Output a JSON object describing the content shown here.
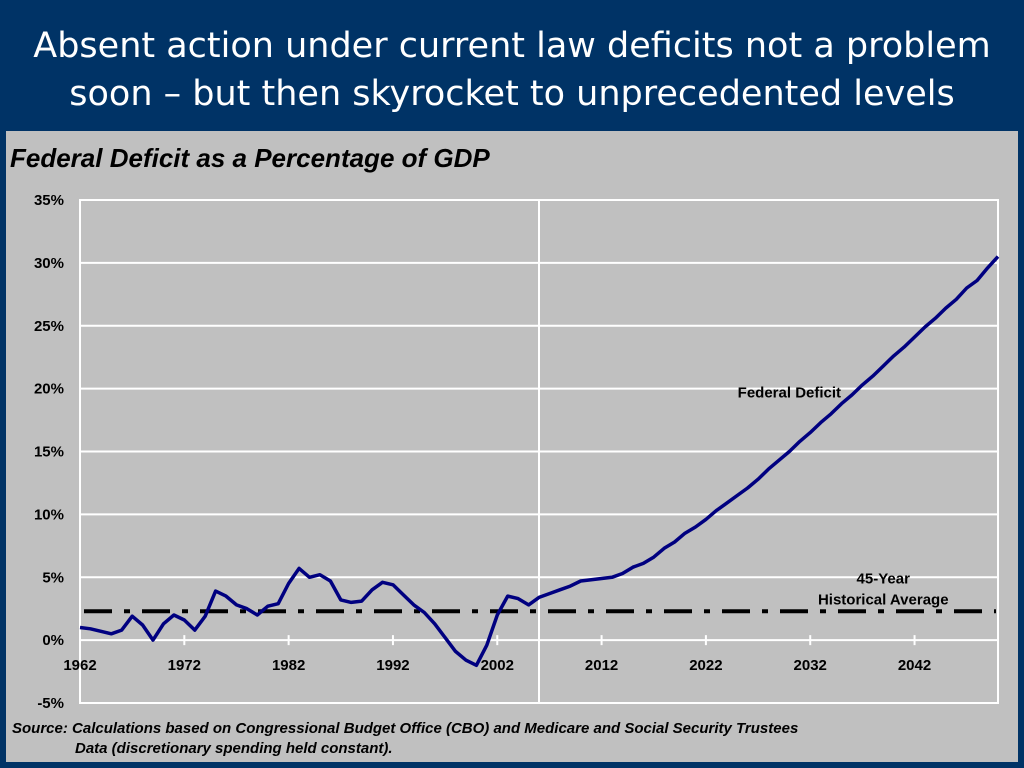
{
  "slide": {
    "title_line1": "Absent action under current law deficits not a problem",
    "title_line2": "soon – but then skyrocket to unprecedented levels",
    "background_color": "#003366",
    "source_line1": "Source: Calculations based on Congressional Budget Office (CBO) and Medicare and Social Security Trustees",
    "source_line2": "Data (discretionary spending held constant)."
  },
  "chart_data": {
    "type": "line",
    "title": "Federal Deficit as a Percentage of GDP",
    "ylim": [
      -5,
      35
    ],
    "xlim": [
      1962,
      2050
    ],
    "y_ticks": [
      35,
      30,
      25,
      20,
      15,
      10,
      5,
      0,
      -5
    ],
    "y_tick_labels": [
      "35%",
      "30%",
      "25%",
      "20%",
      "15%",
      "10%",
      "5%",
      "0%",
      "-5%"
    ],
    "x_ticks": [
      1962,
      1972,
      1982,
      1992,
      2002,
      2012,
      2022,
      2032,
      2042
    ],
    "x_tick_labels": [
      "1962",
      "1972",
      "1982",
      "1992",
      "2002",
      "2012",
      "2022",
      "2032",
      "2042"
    ],
    "grid": "horizontal",
    "projection_start": 2006,
    "series": [
      {
        "name": "Federal Deficit",
        "color": "#000080",
        "x": [
          1962,
          1963,
          1964,
          1965,
          1966,
          1967,
          1968,
          1969,
          1970,
          1971,
          1972,
          1973,
          1974,
          1975,
          1976,
          1977,
          1978,
          1979,
          1980,
          1981,
          1982,
          1983,
          1984,
          1985,
          1986,
          1987,
          1988,
          1989,
          1990,
          1991,
          1992,
          1993,
          1994,
          1995,
          1996,
          1997,
          1998,
          1999,
          2000,
          2001,
          2002,
          2003,
          2004,
          2005,
          2006,
          2007,
          2008,
          2009,
          2010,
          2011,
          2012,
          2013,
          2014,
          2015,
          2016,
          2017,
          2018,
          2019,
          2020,
          2021,
          2022,
          2023,
          2024,
          2025,
          2026,
          2027,
          2028,
          2029,
          2030,
          2031,
          2032,
          2033,
          2034,
          2035,
          2036,
          2037,
          2038,
          2039,
          2040,
          2041,
          2042,
          2043,
          2044,
          2045,
          2046,
          2047,
          2048,
          2049,
          2050
        ],
        "values": [
          1.0,
          0.9,
          0.7,
          0.5,
          0.8,
          1.9,
          1.2,
          0.0,
          1.3,
          2.0,
          1.6,
          0.8,
          1.9,
          3.9,
          3.5,
          2.8,
          2.5,
          2.0,
          2.7,
          2.9,
          4.5,
          5.7,
          5.0,
          5.2,
          4.7,
          3.2,
          3.0,
          3.1,
          4.0,
          4.6,
          4.4,
          3.6,
          2.8,
          2.2,
          1.3,
          0.2,
          -0.9,
          -1.6,
          -2.0,
          -0.4,
          2.0,
          3.5,
          3.3,
          2.8,
          3.4,
          3.7,
          4.0,
          4.3,
          4.7,
          4.8,
          4.9,
          5.0,
          5.3,
          5.8,
          6.1,
          6.6,
          7.3,
          7.8,
          8.5,
          9.0,
          9.6,
          10.3,
          10.9,
          11.5,
          12.1,
          12.8,
          13.6,
          14.3,
          15.0,
          15.8,
          16.5,
          17.3,
          18.0,
          18.8,
          19.5,
          20.3,
          21.0,
          21.8,
          22.6,
          23.3,
          24.1,
          24.9,
          25.6,
          26.4,
          27.1,
          28.0,
          28.6,
          29.6,
          30.5
        ]
      },
      {
        "name": "45-Year Historical Average",
        "color": "#000000",
        "value": 2.3
      }
    ],
    "annotations": [
      {
        "text": "Federal Deficit",
        "x": 2030,
        "y": 19.3
      },
      {
        "text_line1": "45-Year",
        "text_line2": "Historical Average",
        "x": 2039,
        "y": 4.5
      }
    ]
  }
}
